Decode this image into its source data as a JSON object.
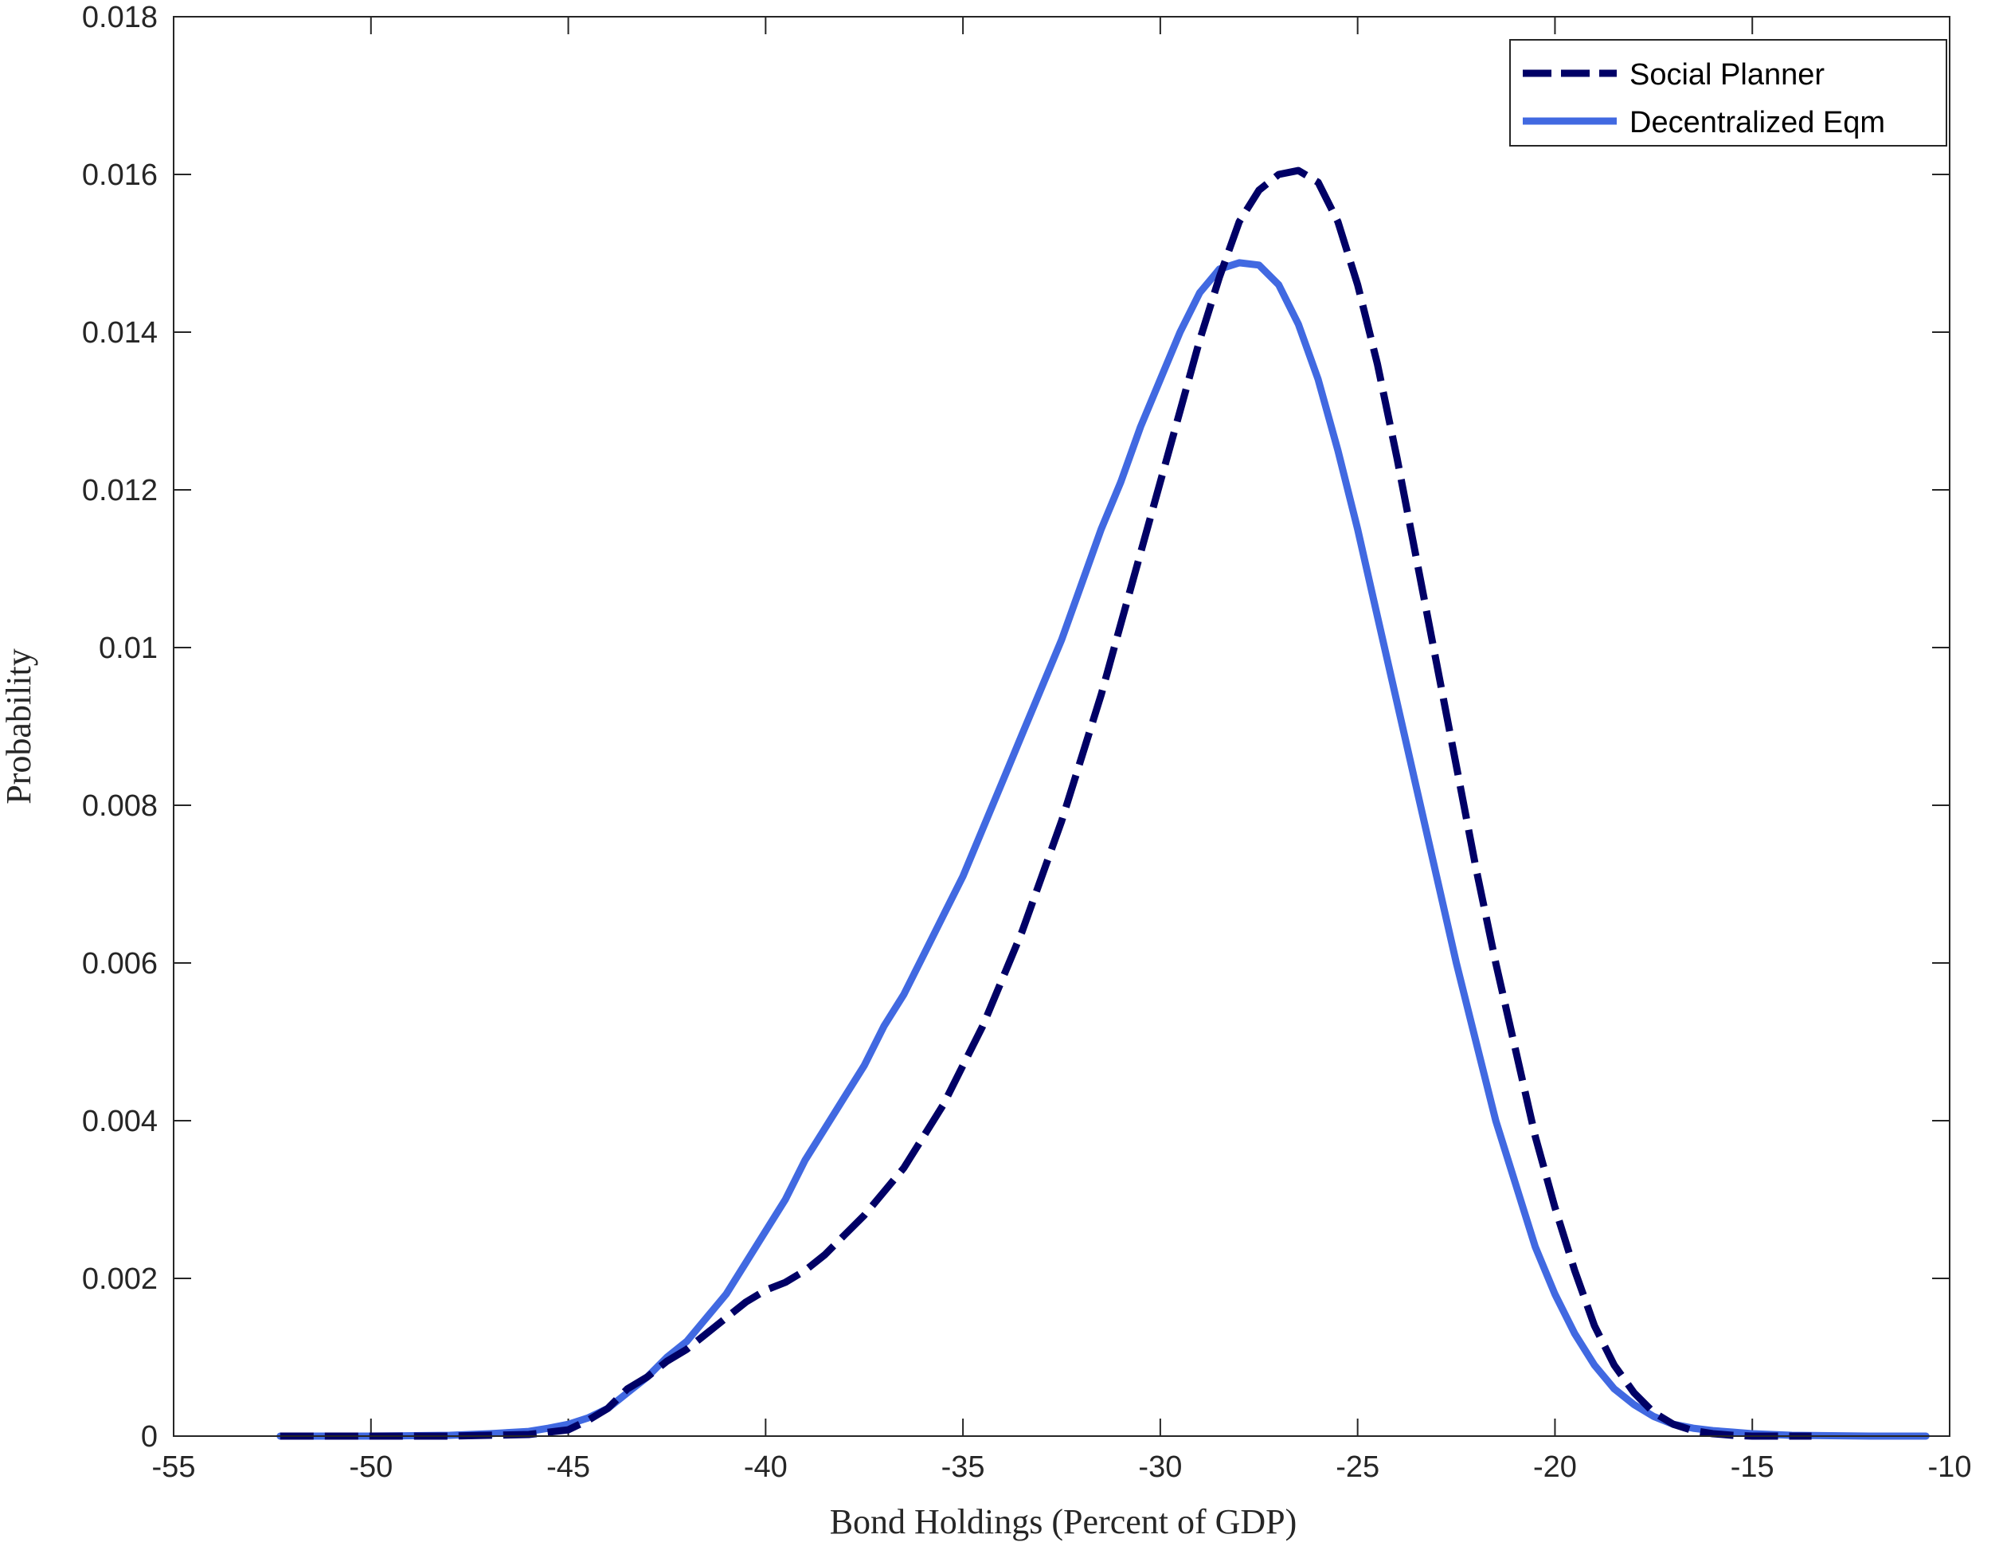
{
  "chart_data": {
    "type": "line",
    "title": "",
    "xlabel": "Bond Holdings (Percent of GDP)",
    "ylabel": "Probability",
    "xlim": [
      -55,
      -10
    ],
    "ylim": [
      0,
      0.018
    ],
    "x_ticks": [
      -55,
      -50,
      -45,
      -40,
      -35,
      -30,
      -25,
      -20,
      -15,
      -10
    ],
    "x_tick_labels": [
      "-55",
      "-50",
      "-45",
      "-40",
      "-35",
      "-30",
      "-25",
      "-20",
      "-15",
      "-10"
    ],
    "y_ticks": [
      0,
      0.002,
      0.004,
      0.006,
      0.008,
      0.01,
      0.012,
      0.014,
      0.016,
      0.018
    ],
    "y_tick_labels": [
      "0",
      "0.002",
      "0.004",
      "0.006",
      "0.008",
      "0.01",
      "0.012",
      "0.014",
      "0.016",
      "0.018"
    ],
    "grid": false,
    "legend_position": "top-right",
    "series": [
      {
        "name": "Social Planner",
        "color": "#000066",
        "style": "dashed",
        "x": [
          -52.3,
          -50,
          -48,
          -46,
          -45,
          -44.5,
          -44,
          -43.5,
          -43,
          -42.5,
          -42,
          -41.5,
          -41,
          -40.5,
          -40,
          -39.5,
          -39,
          -38.5,
          -38,
          -37.5,
          -37,
          -36.5,
          -36,
          -35.5,
          -35,
          -34.5,
          -34,
          -33.5,
          -33,
          -32.5,
          -32,
          -31.5,
          -31,
          -30.5,
          -30,
          -29.5,
          -29,
          -28.5,
          -28,
          -27.5,
          -27,
          -26.5,
          -26,
          -25.5,
          -25,
          -24.5,
          -24,
          -23.5,
          -23,
          -22.5,
          -22,
          -21.5,
          -21,
          -20.5,
          -20,
          -19.5,
          -19,
          -18.5,
          -18,
          -17.5,
          -17,
          -16.5,
          -16,
          -15.5,
          -15,
          -14,
          -13.5
        ],
        "y": [
          0,
          0,
          0,
          2e-05,
          8e-05,
          0.0002,
          0.00035,
          0.0006,
          0.00075,
          0.00095,
          0.0011,
          0.0013,
          0.0015,
          0.0017,
          0.00185,
          0.00195,
          0.0021,
          0.0023,
          0.00255,
          0.0028,
          0.0031,
          0.0034,
          0.0038,
          0.0042,
          0.0047,
          0.0052,
          0.0058,
          0.0064,
          0.0071,
          0.0078,
          0.0086,
          0.0094,
          0.0103,
          0.0112,
          0.0121,
          0.013,
          0.0139,
          0.0147,
          0.0154,
          0.0158,
          0.016,
          0.01605,
          0.0159,
          0.0154,
          0.0146,
          0.0136,
          0.0124,
          0.0111,
          0.0098,
          0.0085,
          0.0072,
          0.006,
          0.0049,
          0.0038,
          0.0029,
          0.0021,
          0.0014,
          0.0009,
          0.00055,
          0.0003,
          0.00015,
          7e-05,
          3e-05,
          1e-05,
          0,
          0,
          0
        ]
      },
      {
        "name": "Decentralized Eqm",
        "color": "#4169E1",
        "style": "solid",
        "x": [
          -52.3,
          -50,
          -48,
          -47,
          -46,
          -45.5,
          -45,
          -44.5,
          -44,
          -43.5,
          -43,
          -42.5,
          -42,
          -41.5,
          -41,
          -40.5,
          -40,
          -39.5,
          -39,
          -38.5,
          -38,
          -37.5,
          -37,
          -36.5,
          -36,
          -35.5,
          -35,
          -34.5,
          -34,
          -33.5,
          -33,
          -32.5,
          -32,
          -31.5,
          -31,
          -30.5,
          -30,
          -29.5,
          -29,
          -28.5,
          -28,
          -27.5,
          -27,
          -26.5,
          -26,
          -25.5,
          -25,
          -24.5,
          -24,
          -23.5,
          -23,
          -22.5,
          -22,
          -21.5,
          -21,
          -20.5,
          -20,
          -19.5,
          -19,
          -18.5,
          -18,
          -17.5,
          -17,
          -16.5,
          -16,
          -15.5,
          -15,
          -14,
          -13,
          -12,
          -10.6
        ],
        "y": [
          0,
          0,
          1e-05,
          3e-05,
          6e-05,
          0.0001,
          0.00015,
          0.00023,
          0.00035,
          0.00055,
          0.00075,
          0.001,
          0.0012,
          0.0015,
          0.0018,
          0.0022,
          0.0026,
          0.003,
          0.0035,
          0.0039,
          0.0043,
          0.0047,
          0.0052,
          0.0056,
          0.0061,
          0.0066,
          0.0071,
          0.0077,
          0.0083,
          0.0089,
          0.0095,
          0.0101,
          0.0108,
          0.0115,
          0.0121,
          0.0128,
          0.0134,
          0.014,
          0.0145,
          0.0148,
          0.01488,
          0.01485,
          0.0146,
          0.0141,
          0.0134,
          0.0125,
          0.0115,
          0.0104,
          0.0093,
          0.0082,
          0.0071,
          0.006,
          0.005,
          0.004,
          0.0032,
          0.0024,
          0.0018,
          0.0013,
          0.0009,
          0.0006,
          0.0004,
          0.00025,
          0.00015,
          0.0001,
          7e-05,
          5e-05,
          3e-05,
          1e-05,
          5e-06,
          0,
          0
        ]
      }
    ]
  }
}
